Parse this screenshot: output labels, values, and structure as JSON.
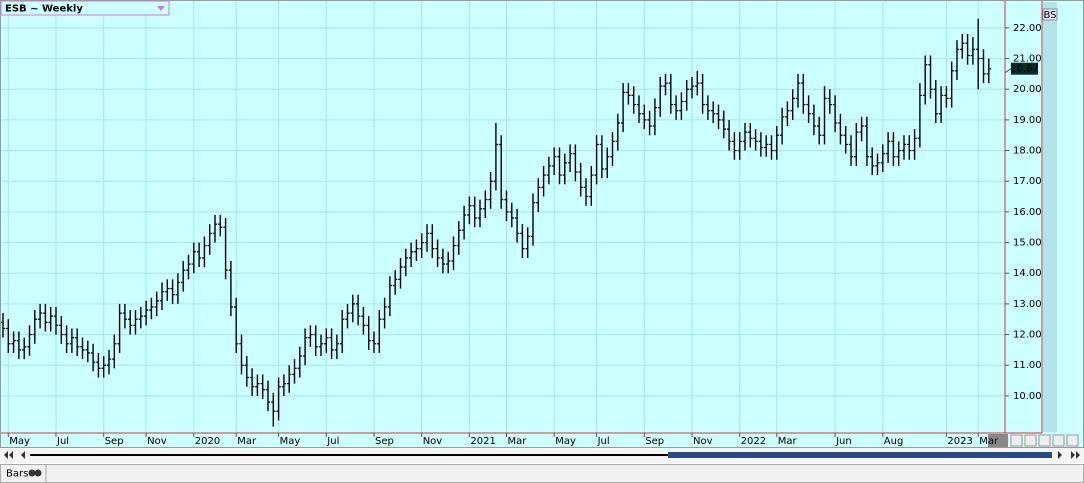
{
  "chart_data": {
    "type": "ohlc",
    "title": "ESB ~ Weekly",
    "color": "#000000",
    "grid": true,
    "categories": [
      null,
      "May",
      null,
      null,
      null,
      null,
      null,
      null,
      null,
      null,
      "Jul",
      null,
      null,
      null,
      null,
      null,
      null,
      null,
      null,
      "Sep",
      null,
      null,
      null,
      null,
      null,
      null,
      null,
      "Nov",
      null,
      null,
      null,
      null,
      null,
      null,
      null,
      null,
      "2020",
      null,
      null,
      null,
      null,
      null,
      null,
      null,
      "Mar",
      null,
      null,
      null,
      null,
      null,
      null,
      null,
      "May",
      null,
      null,
      null,
      null,
      null,
      null,
      null,
      null,
      "Jul",
      null,
      null,
      null,
      null,
      null,
      null,
      null,
      null,
      "Sep",
      null,
      null,
      null,
      null,
      null,
      null,
      null,
      null,
      "Nov",
      null,
      null,
      null,
      null,
      null,
      null,
      null,
      null,
      "2021",
      null,
      null,
      null,
      null,
      null,
      null,
      "Mar",
      null,
      null,
      null,
      null,
      null,
      null,
      null,
      null,
      "May",
      null,
      null,
      null,
      null,
      null,
      null,
      null,
      "Jul",
      null,
      null,
      null,
      null,
      null,
      null,
      null,
      null,
      "Sep",
      null,
      null,
      null,
      null,
      null,
      null,
      null,
      null,
      "Nov",
      null,
      null,
      null,
      null,
      null,
      null,
      null,
      null,
      "2022",
      null,
      null,
      null,
      null,
      null,
      null,
      "Mar",
      null,
      null,
      null,
      null,
      null,
      null,
      null,
      null,
      null,
      null,
      "Jun",
      null,
      null,
      null,
      null,
      null,
      null,
      null,
      null,
      "Aug",
      null,
      null,
      null,
      null,
      null,
      null,
      null,
      null,
      null,
      null,
      null,
      "2023",
      null,
      null,
      null,
      null,
      null,
      "Mar",
      null,
      null
    ],
    "open": [
      12.4,
      12.2,
      11.7,
      11.8,
      11.5,
      11.6,
      12.0,
      12.5,
      12.7,
      12.4,
      12.6,
      12.3,
      12.0,
      11.7,
      11.9,
      11.6,
      11.5,
      11.4,
      11.1,
      10.9,
      11.0,
      11.2,
      11.7,
      12.7,
      12.5,
      12.3,
      12.5,
      12.6,
      12.8,
      12.9,
      13.1,
      13.4,
      13.5,
      13.3,
      13.7,
      14.1,
      14.3,
      14.7,
      14.5,
      14.9,
      15.3,
      15.6,
      15.5,
      14.1,
      12.9,
      11.7,
      11.0,
      10.6,
      10.3,
      10.4,
      10.2,
      9.8,
      9.5,
      10.3,
      10.4,
      10.7,
      10.9,
      11.3,
      11.9,
      12.0,
      11.6,
      11.7,
      11.9,
      11.5,
      11.7,
      12.5,
      12.7,
      13.0,
      12.6,
      12.3,
      11.8,
      11.7,
      12.5,
      12.9,
      13.6,
      13.8,
      14.2,
      14.5,
      14.7,
      14.8,
      15.0,
      15.3,
      14.8,
      14.5,
      14.3,
      14.4,
      14.9,
      15.4,
      15.9,
      16.2,
      15.8,
      16.1,
      16.4,
      17.0,
      18.2,
      16.4,
      16.0,
      15.8,
      15.3,
      14.8,
      15.2,
      16.3,
      16.8,
      17.2,
      17.5,
      17.8,
      17.2,
      17.6,
      17.9,
      17.3,
      16.8,
      16.5,
      17.2,
      18.2,
      17.4,
      17.8,
      18.3,
      18.9,
      19.9,
      19.8,
      19.5,
      19.2,
      19.0,
      18.8,
      19.4,
      20.1,
      20.2,
      19.5,
      19.3,
      19.6,
      20.0,
      20.1,
      20.2,
      19.5,
      19.3,
      19.2,
      19.0,
      18.7,
      18.3,
      18.0,
      18.3,
      18.6,
      18.4,
      18.3,
      18.1,
      18.2,
      18.0,
      18.5,
      19.1,
      19.3,
      19.7,
      20.2,
      19.5,
      19.2,
      18.8,
      18.5,
      19.7,
      19.5,
      18.9,
      18.5,
      18.2,
      17.8,
      18.6,
      18.8,
      17.8,
      17.5,
      17.6,
      17.9,
      18.3,
      17.8,
      18.0,
      18.2,
      18.0,
      18.4,
      19.8,
      20.8,
      20.0,
      19.2,
      19.8,
      19.7,
      20.6,
      21.3,
      21.5,
      21.1,
      21.3,
      21.0,
      20.5
    ],
    "high": [
      12.7,
      12.5,
      12.1,
      12.1,
      11.9,
      12.3,
      12.8,
      13.0,
      13.0,
      12.9,
      12.9,
      12.6,
      12.3,
      12.2,
      12.2,
      11.9,
      11.8,
      11.7,
      11.4,
      11.3,
      11.5,
      12.0,
      13.0,
      13.0,
      12.8,
      12.8,
      12.9,
      13.1,
      13.2,
      13.4,
      13.7,
      13.8,
      13.8,
      14.0,
      14.4,
      14.6,
      15.0,
      15.0,
      15.2,
      15.6,
      15.9,
      15.9,
      15.8,
      14.4,
      13.2,
      12.0,
      11.3,
      10.9,
      10.7,
      10.7,
      10.5,
      10.1,
      10.6,
      10.7,
      11.0,
      11.2,
      11.6,
      12.2,
      12.3,
      12.3,
      12.0,
      12.2,
      12.2,
      12.0,
      12.8,
      13.0,
      13.3,
      13.3,
      12.9,
      12.6,
      12.1,
      12.8,
      13.2,
      13.9,
      14.1,
      14.5,
      14.8,
      15.0,
      15.1,
      15.3,
      15.6,
      15.6,
      15.1,
      14.8,
      14.7,
      15.2,
      15.7,
      16.2,
      16.5,
      16.5,
      16.4,
      16.7,
      17.3,
      18.9,
      18.5,
      16.7,
      16.3,
      16.1,
      15.6,
      15.5,
      16.6,
      17.1,
      17.5,
      17.8,
      18.1,
      18.1,
      17.9,
      18.2,
      18.2,
      17.6,
      17.1,
      17.5,
      18.5,
      18.5,
      18.1,
      18.6,
      19.2,
      20.2,
      20.2,
      20.1,
      19.8,
      19.5,
      19.3,
      19.7,
      20.4,
      20.5,
      20.5,
      19.8,
      19.9,
      20.3,
      20.4,
      20.6,
      20.5,
      19.8,
      19.6,
      19.5,
      19.3,
      19.0,
      18.6,
      18.6,
      18.9,
      18.9,
      18.7,
      18.6,
      18.5,
      18.5,
      18.8,
      19.4,
      19.6,
      20.0,
      20.5,
      20.5,
      19.8,
      19.5,
      19.1,
      20.1,
      20.0,
      19.8,
      19.2,
      18.8,
      18.5,
      18.9,
      19.1,
      19.1,
      18.1,
      17.9,
      18.2,
      18.6,
      18.6,
      18.3,
      18.5,
      18.5,
      18.7,
      20.2,
      21.1,
      21.1,
      20.3,
      20.1,
      20.1,
      20.9,
      21.6,
      21.8,
      21.8,
      21.7,
      22.3,
      21.3,
      21.0
    ],
    "low": [
      11.9,
      11.4,
      11.4,
      11.2,
      11.2,
      11.3,
      11.7,
      12.2,
      12.1,
      12.1,
      12.0,
      11.7,
      11.4,
      11.4,
      11.3,
      11.2,
      11.1,
      10.8,
      10.6,
      10.6,
      10.7,
      10.9,
      11.4,
      12.2,
      12.0,
      12.0,
      12.2,
      12.3,
      12.5,
      12.6,
      12.8,
      13.1,
      13.0,
      13.0,
      13.4,
      13.8,
      14.0,
      14.2,
      14.2,
      14.6,
      15.0,
      15.2,
      13.8,
      12.6,
      11.4,
      10.7,
      10.3,
      10.0,
      10.0,
      9.9,
      9.5,
      9.0,
      9.2,
      10.0,
      10.1,
      10.4,
      10.6,
      11.0,
      11.6,
      11.3,
      11.3,
      11.4,
      11.2,
      11.2,
      11.4,
      12.2,
      12.4,
      12.3,
      12.0,
      11.5,
      11.4,
      11.4,
      12.2,
      12.6,
      13.3,
      13.5,
      13.9,
      14.2,
      14.4,
      14.5,
      14.7,
      14.5,
      14.2,
      14.0,
      14.0,
      14.1,
      14.6,
      15.1,
      15.6,
      15.5,
      15.5,
      15.8,
      16.1,
      16.7,
      16.1,
      15.7,
      15.5,
      15.0,
      14.5,
      14.5,
      14.9,
      16.0,
      16.5,
      16.9,
      17.2,
      16.9,
      16.9,
      17.3,
      17.0,
      16.5,
      16.2,
      16.2,
      16.9,
      17.1,
      17.1,
      17.5,
      18.0,
      18.6,
      19.5,
      19.2,
      18.9,
      18.7,
      18.5,
      18.5,
      19.1,
      19.8,
      19.2,
      19.0,
      19.0,
      19.3,
      19.7,
      19.8,
      19.2,
      19.0,
      18.9,
      18.7,
      18.4,
      18.0,
      17.7,
      17.7,
      18.0,
      18.1,
      18.0,
      17.8,
      17.8,
      17.7,
      17.7,
      18.2,
      18.8,
      19.0,
      19.4,
      19.2,
      18.9,
      18.5,
      18.2,
      18.2,
      19.2,
      18.6,
      18.2,
      17.9,
      17.5,
      17.5,
      18.3,
      17.5,
      17.2,
      17.2,
      17.3,
      17.6,
      17.5,
      17.5,
      17.7,
      17.7,
      17.7,
      18.1,
      19.5,
      19.7,
      18.9,
      18.9,
      19.4,
      19.4,
      20.3,
      21.0,
      20.8,
      20.8,
      20.0,
      20.2,
      20.2
    ],
    "close": [
      12.2,
      11.7,
      11.8,
      11.5,
      11.6,
      12.0,
      12.5,
      12.7,
      12.4,
      12.6,
      12.3,
      12.0,
      11.7,
      11.9,
      11.6,
      11.5,
      11.4,
      11.1,
      10.9,
      11.0,
      11.2,
      11.7,
      12.7,
      12.5,
      12.3,
      12.5,
      12.6,
      12.8,
      12.9,
      13.1,
      13.4,
      13.5,
      13.3,
      13.7,
      14.1,
      14.3,
      14.7,
      14.5,
      14.9,
      15.3,
      15.6,
      15.5,
      14.1,
      12.9,
      11.7,
      11.0,
      10.6,
      10.3,
      10.4,
      10.2,
      9.8,
      9.5,
      10.3,
      10.4,
      10.7,
      10.9,
      11.3,
      11.9,
      12.0,
      11.6,
      11.7,
      11.9,
      11.5,
      11.7,
      12.5,
      12.7,
      13.0,
      12.6,
      12.3,
      11.8,
      11.7,
      12.5,
      12.9,
      13.6,
      13.8,
      14.2,
      14.5,
      14.7,
      14.8,
      15.0,
      15.3,
      14.8,
      14.5,
      14.3,
      14.4,
      14.9,
      15.4,
      15.9,
      16.2,
      15.8,
      16.1,
      16.4,
      17.0,
      18.2,
      16.4,
      16.0,
      15.8,
      15.3,
      14.8,
      15.2,
      16.3,
      16.8,
      17.2,
      17.5,
      17.8,
      17.2,
      17.6,
      17.9,
      17.3,
      16.8,
      16.5,
      17.2,
      18.2,
      17.4,
      17.8,
      18.3,
      18.9,
      19.9,
      19.8,
      19.5,
      19.2,
      19.0,
      18.8,
      19.4,
      20.1,
      20.2,
      19.5,
      19.3,
      19.6,
      20.0,
      20.1,
      20.2,
      19.5,
      19.3,
      19.2,
      19.0,
      18.7,
      18.3,
      18.0,
      18.3,
      18.6,
      18.4,
      18.3,
      18.1,
      18.2,
      18.0,
      18.5,
      19.1,
      19.3,
      19.7,
      20.2,
      19.5,
      19.2,
      18.8,
      18.5,
      19.7,
      19.5,
      18.9,
      18.5,
      18.2,
      17.8,
      18.6,
      18.8,
      17.8,
      17.5,
      17.6,
      17.9,
      18.3,
      17.8,
      18.0,
      18.2,
      18.0,
      18.4,
      19.8,
      20.8,
      20.0,
      19.2,
      19.8,
      19.7,
      20.6,
      21.3,
      21.5,
      21.1,
      21.3,
      21.0,
      20.5,
      20.67
    ],
    "ylim": [
      8.79,
      22.91
    ],
    "yticks": [
      {
        "value": 10,
        "label": "10.00"
      },
      {
        "value": 11,
        "label": "11.00"
      },
      {
        "value": 12,
        "label": "12.00"
      },
      {
        "value": 13,
        "label": "13.00"
      },
      {
        "value": 14,
        "label": "14.00"
      },
      {
        "value": 15,
        "label": "15.00"
      },
      {
        "value": 16,
        "label": "16.00"
      },
      {
        "value": 17,
        "label": "17.00"
      },
      {
        "value": 18,
        "label": "18.00"
      },
      {
        "value": 19,
        "label": "19.00"
      },
      {
        "value": 20,
        "label": "20.00"
      },
      {
        "value": 21,
        "label": "21.00"
      },
      {
        "value": 22,
        "label": "22.00"
      }
    ]
  },
  "ui": {
    "status": "Bars",
    "badge": "BS"
  }
}
